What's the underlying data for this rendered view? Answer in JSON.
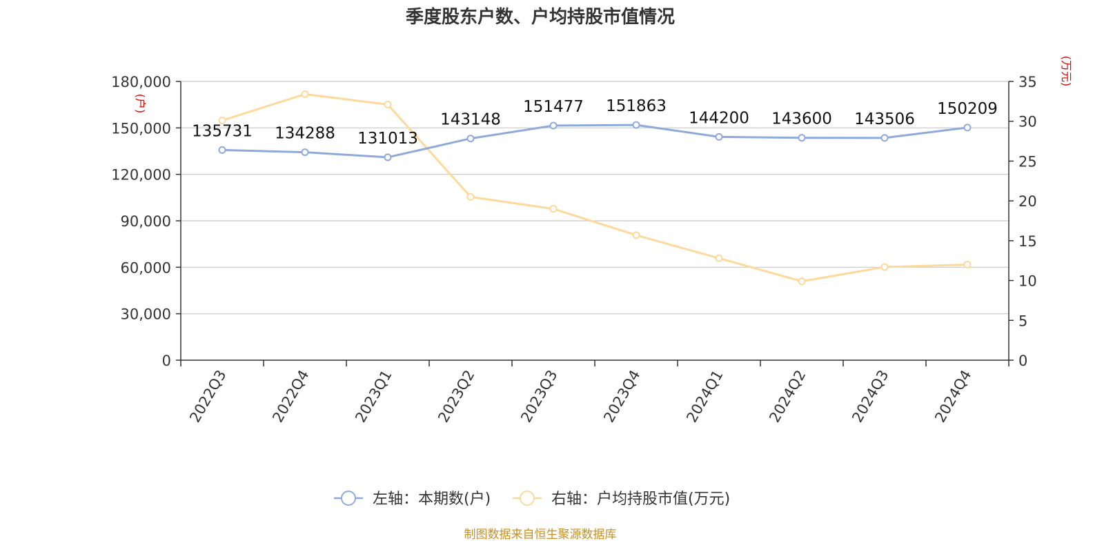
{
  "chart_data": {
    "type": "line",
    "title": "季度股东户数、户均持股市值情况",
    "categories": [
      "2022Q3",
      "2022Q4",
      "2023Q1",
      "2023Q2",
      "2023Q3",
      "2023Q4",
      "2024Q1",
      "2024Q2",
      "2024Q3",
      "2024Q4"
    ],
    "y_left": {
      "unit": "(户)",
      "range": [
        0,
        180000
      ],
      "ticks": [
        0,
        30000,
        60000,
        90000,
        120000,
        150000,
        180000
      ],
      "tick_labels": [
        "0",
        "30,000",
        "60,000",
        "90,000",
        "120,000",
        "150,000",
        "180,000"
      ]
    },
    "y_right": {
      "unit": "(万元)",
      "range": [
        0,
        35
      ],
      "ticks": [
        0,
        5,
        10,
        15,
        20,
        25,
        30,
        35
      ],
      "tick_labels": [
        "0",
        "5",
        "10",
        "15",
        "20",
        "25",
        "30",
        "35"
      ]
    },
    "series": [
      {
        "name": "左轴：本期数(户)",
        "axis": "left",
        "color": "#8eaadb",
        "values": [
          135731,
          134288,
          131013,
          143148,
          151477,
          151863,
          144200,
          143600,
          143506,
          150209
        ],
        "data_labels": [
          "135731",
          "134288",
          "131013",
          "143148",
          "151477",
          "151863",
          "144200",
          "143600",
          "143506",
          "150209"
        ]
      },
      {
        "name": "右轴：户均持股市值(万元)",
        "axis": "right",
        "color": "#fdd99b",
        "values": [
          30.1,
          33.4,
          32.1,
          20.5,
          19.0,
          15.7,
          12.8,
          9.9,
          11.7,
          12.0
        ]
      }
    ],
    "grid": true,
    "legend_position": "bottom-center",
    "source": "制图数据来自恒生聚源数据库"
  }
}
